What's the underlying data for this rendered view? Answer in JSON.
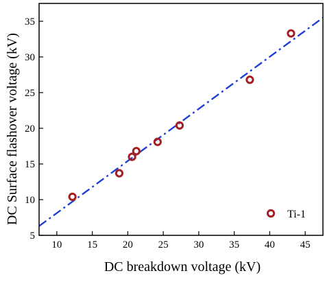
{
  "chart_data": {
    "type": "scatter",
    "xlabel": "DC breakdown voltage (kV)",
    "ylabel": "DC Surface flashover voltage (kV)",
    "xlim": [
      7.5,
      47.5
    ],
    "ylim": [
      5,
      37.5
    ],
    "x_ticks": [
      10,
      15,
      20,
      25,
      30,
      35,
      40,
      45
    ],
    "y_ticks": [
      5,
      10,
      15,
      20,
      25,
      30,
      35
    ],
    "x_tick_labels": [
      "10",
      "15",
      "20",
      "25",
      "30",
      "35",
      "40",
      "45"
    ],
    "y_tick_labels": [
      "5",
      "10",
      "15",
      "20",
      "25",
      "30",
      "35"
    ],
    "grid": false,
    "legend_position": "bottom-right",
    "series": [
      {
        "name": "Ti-1",
        "marker": "open-circle",
        "color": "#a31f24",
        "points": [
          {
            "x": 12.2,
            "y": 10.4
          },
          {
            "x": 18.8,
            "y": 13.7
          },
          {
            "x": 20.6,
            "y": 16.0
          },
          {
            "x": 21.2,
            "y": 16.8
          },
          {
            "x": 24.2,
            "y": 18.1
          },
          {
            "x": 27.3,
            "y": 20.4
          },
          {
            "x": 37.2,
            "y": 26.8
          },
          {
            "x": 43.0,
            "y": 33.3
          }
        ]
      }
    ],
    "fit_line": {
      "style": "dash-dot",
      "color": "#1f3fd6",
      "from": {
        "x": 7.5,
        "y": 6.3
      },
      "to": {
        "x": 47.5,
        "y": 35.5
      }
    }
  }
}
